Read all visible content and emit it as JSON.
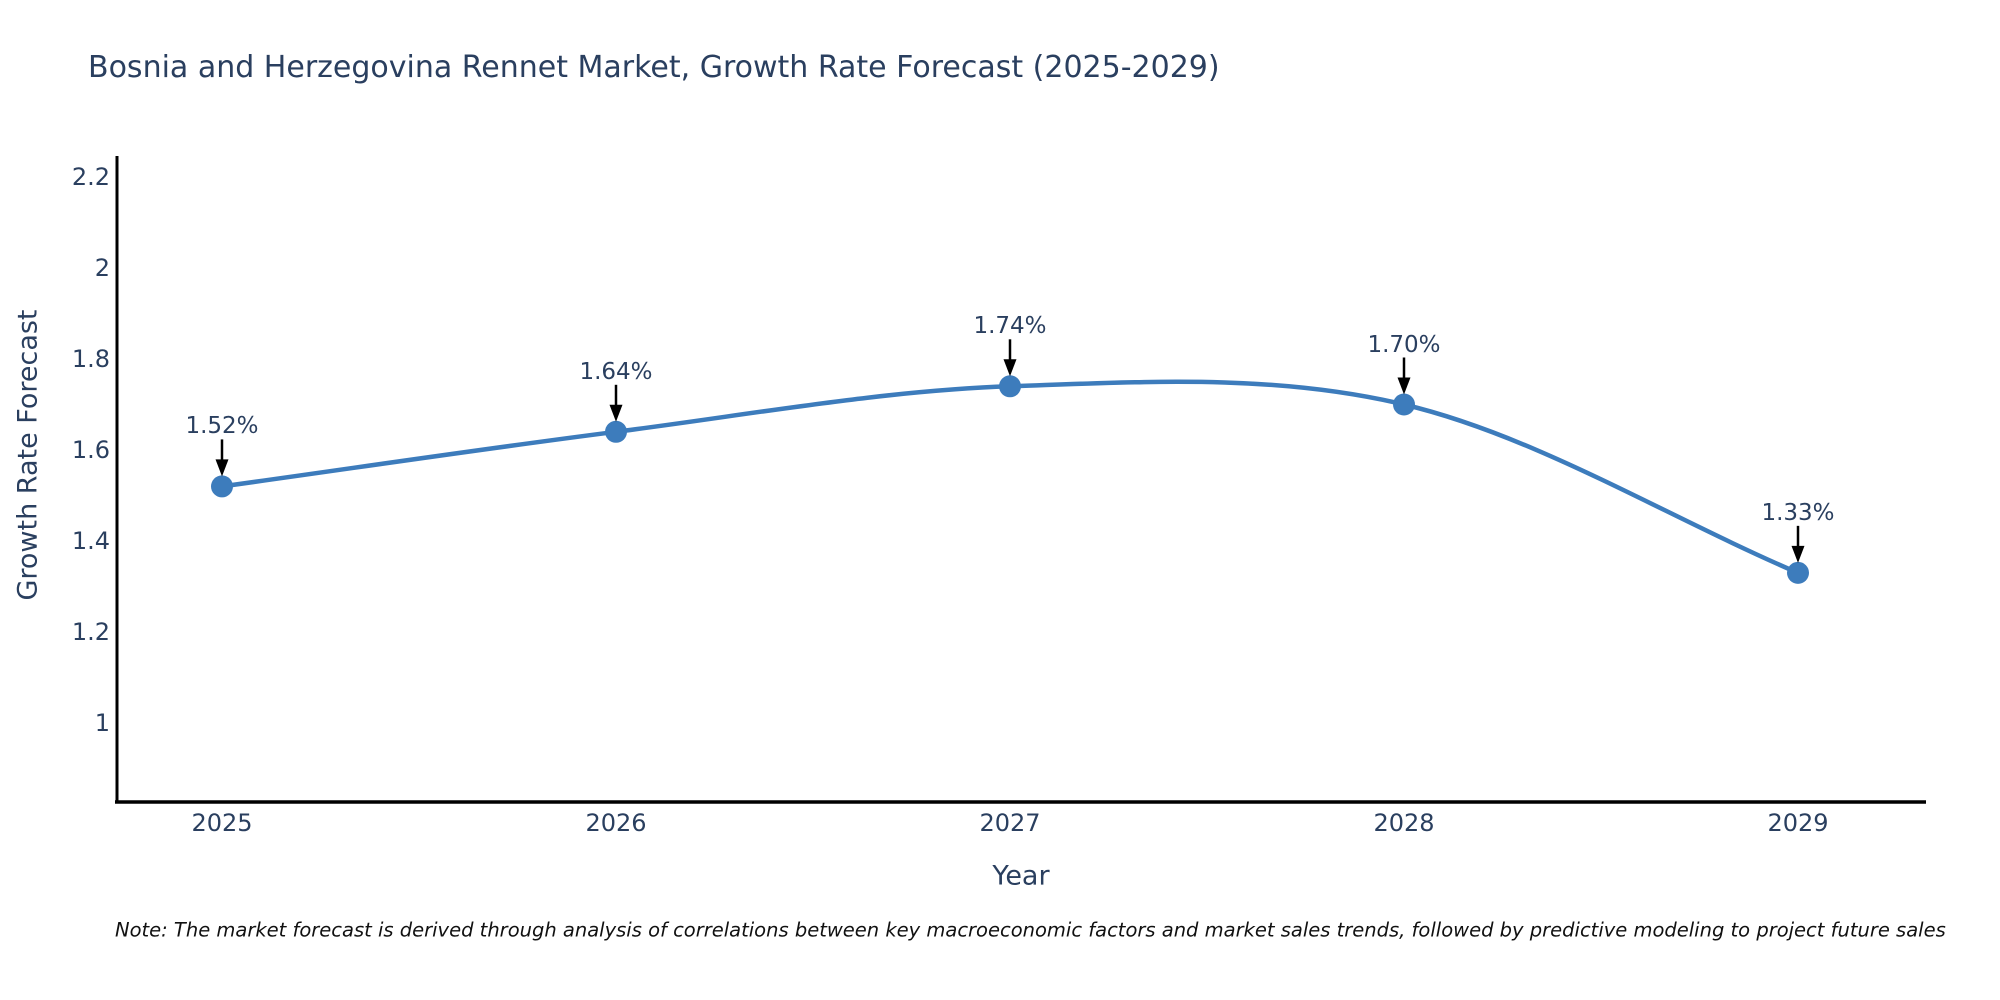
{
  "title": "Bosnia and Herzegovina Rennet Market, Growth Rate Forecast (2025-2029)",
  "note": "Note: The market forecast is derived through analysis of correlations between key macroeconomic factors and market sales trends, followed by predictive modeling to project future sales",
  "chart_data": {
    "type": "line",
    "line_shape": "spline",
    "title": "Bosnia and Herzegovina Rennet Market, Growth Rate Forecast (2025-2029)",
    "xlabel": "Year",
    "ylabel": "Growth Rate Forecast",
    "categories": [
      "2025",
      "2026",
      "2027",
      "2028",
      "2029"
    ],
    "values": [
      1.52,
      1.64,
      1.74,
      1.7,
      1.33
    ],
    "point_labels": [
      "1.52%",
      "1.64%",
      "1.74%",
      "1.70%",
      "1.33%"
    ],
    "annotations": "black downward arrows from each value label to its data point",
    "y_ticks": [
      1,
      1.2,
      1.4,
      1.6,
      1.8,
      2,
      2.2
    ],
    "ylim": [
      0.82,
      2.25
    ],
    "grid": false,
    "legend": false,
    "markers": true,
    "colors": {
      "line": "#3d7cbc",
      "marker": "#3d7cbc",
      "arrow": "#000000",
      "axis_line": "#000000",
      "text": "#2a3f5f",
      "note_text": "#111111",
      "background": "#ffffff"
    }
  }
}
